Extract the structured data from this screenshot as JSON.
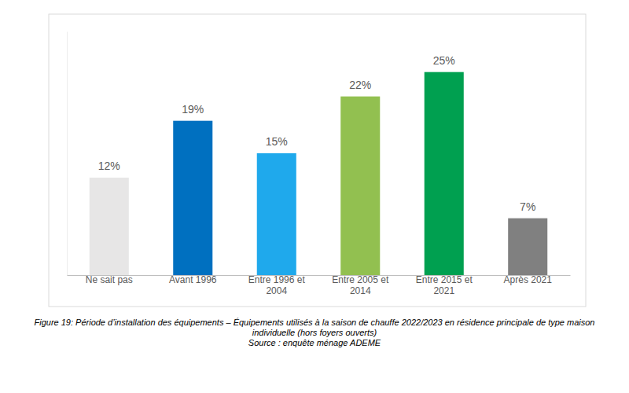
{
  "chart_data": {
    "type": "bar",
    "title": "Figure 19: Période d’installation des équipements – Équipements utilisés à la saison de chauffe 2022/2023 en résidence principale de type maison individuelle (hors foyers ouverts)",
    "subtitle": "Source : enquête ménage ADEME",
    "categories": [
      "Ne sait pas",
      "Avant 1996",
      "Entre 1996 et 2004",
      "Entre 2005 et 2014",
      "Entre 2015 et 2021",
      "Après 2021"
    ],
    "values": [
      12,
      19,
      15,
      22,
      25,
      7
    ],
    "value_labels": [
      "12%",
      "19%",
      "15%",
      "22%",
      "25%",
      "7%"
    ],
    "colors": [
      "#e7e6e6",
      "#0070c0",
      "#1fa9ec",
      "#92c050",
      "#00a050",
      "#808080"
    ],
    "ylim": [
      0,
      30
    ],
    "data_labels": true,
    "tick_labels": "x",
    "grid": false
  }
}
